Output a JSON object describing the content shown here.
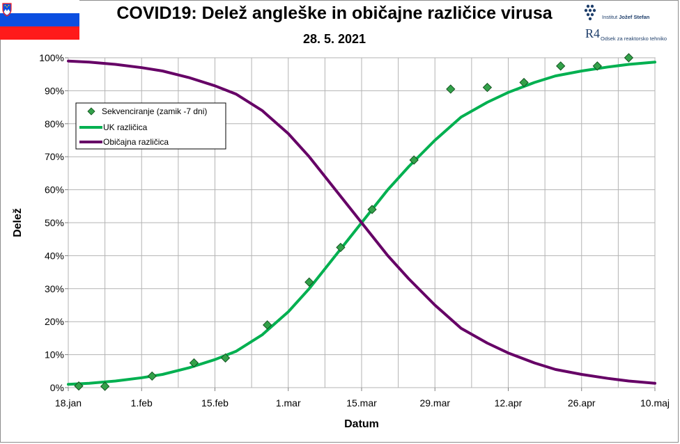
{
  "title": "COVID19: Delež angleške in običajne različice virusa",
  "subtitle": "28. 5. 2021",
  "logos": {
    "ijs_text": "Institut Jožef Stefan",
    "ijs_institut": "Institut ",
    "ijs_name": "Jožef Stefan",
    "r4_mark": "R4",
    "r4_text": "Odsek za reaktorsko tehniko"
  },
  "colors": {
    "uk": "#00b050",
    "common": "#660066",
    "points_fill": "#33a14a",
    "points_stroke": "#0d4d1a",
    "flag_white": "#ffffff",
    "flag_blue": "#0b4ee0",
    "flag_red": "#ff1a1a"
  },
  "chart_data": {
    "type": "line",
    "xlabel": "Datum",
    "ylabel": "Delež",
    "x_tick_labels": [
      "18.jan",
      "1.feb",
      "15.feb",
      "1.mar",
      "15.mar",
      "29.mar",
      "12.apr",
      "26.apr",
      "10.maj"
    ],
    "x_range": [
      "2021-01-18",
      "2021-05-10"
    ],
    "y_tick_labels": [
      "0%",
      "10%",
      "20%",
      "30%",
      "40%",
      "50%",
      "60%",
      "70%",
      "80%",
      "90%",
      "100%"
    ],
    "ylim": [
      0,
      100
    ],
    "grid": true,
    "legend_position": "top-left",
    "legend": [
      "Sekvenciranje (zamik -7 dni)",
      "UK različica",
      "Običajna različica"
    ],
    "series": [
      {
        "name": "Sekvenciranje (zamik -7 dni)",
        "style": "markers",
        "points": [
          {
            "x": "2021-01-20",
            "y": 0.5
          },
          {
            "x": "2021-01-25",
            "y": 0.4
          },
          {
            "x": "2021-02-03",
            "y": 3.5
          },
          {
            "x": "2021-02-11",
            "y": 7.5
          },
          {
            "x": "2021-02-17",
            "y": 9.0
          },
          {
            "x": "2021-02-25",
            "y": 19.0
          },
          {
            "x": "2021-03-05",
            "y": 32.0
          },
          {
            "x": "2021-03-11",
            "y": 42.5
          },
          {
            "x": "2021-03-17",
            "y": 54.0
          },
          {
            "x": "2021-03-25",
            "y": 69.0
          },
          {
            "x": "2021-04-01",
            "y": 90.5
          },
          {
            "x": "2021-04-08",
            "y": 91.0
          },
          {
            "x": "2021-04-15",
            "y": 92.5
          },
          {
            "x": "2021-04-22",
            "y": 97.5
          },
          {
            "x": "2021-04-29",
            "y": 97.5
          },
          {
            "x": "2021-05-05",
            "y": 100.0
          }
        ]
      },
      {
        "name": "UK različica",
        "style": "line",
        "points": [
          {
            "x": "2021-01-18",
            "y": 1.0
          },
          {
            "x": "2021-01-22",
            "y": 1.3
          },
          {
            "x": "2021-01-27",
            "y": 2.0
          },
          {
            "x": "2021-02-01",
            "y": 3.0
          },
          {
            "x": "2021-02-05",
            "y": 4.0
          },
          {
            "x": "2021-02-10",
            "y": 6.0
          },
          {
            "x": "2021-02-15",
            "y": 8.5
          },
          {
            "x": "2021-02-19",
            "y": 11.0
          },
          {
            "x": "2021-02-24",
            "y": 16.0
          },
          {
            "x": "2021-03-01",
            "y": 23.0
          },
          {
            "x": "2021-03-05",
            "y": 30.0
          },
          {
            "x": "2021-03-10",
            "y": 40.0
          },
          {
            "x": "2021-03-15",
            "y": 50.0
          },
          {
            "x": "2021-03-20",
            "y": 60.0
          },
          {
            "x": "2021-03-24",
            "y": 67.0
          },
          {
            "x": "2021-03-29",
            "y": 75.0
          },
          {
            "x": "2021-04-03",
            "y": 82.0
          },
          {
            "x": "2021-04-08",
            "y": 86.5
          },
          {
            "x": "2021-04-12",
            "y": 89.5
          },
          {
            "x": "2021-04-17",
            "y": 92.5
          },
          {
            "x": "2021-04-21",
            "y": 94.5
          },
          {
            "x": "2021-04-26",
            "y": 96.0
          },
          {
            "x": "2021-05-01",
            "y": 97.2
          },
          {
            "x": "2021-05-05",
            "y": 98.0
          },
          {
            "x": "2021-05-10",
            "y": 98.7
          }
        ]
      },
      {
        "name": "Običajna različica",
        "style": "line",
        "points": [
          {
            "x": "2021-01-18",
            "y": 99.0
          },
          {
            "x": "2021-01-22",
            "y": 98.7
          },
          {
            "x": "2021-01-27",
            "y": 98.0
          },
          {
            "x": "2021-02-01",
            "y": 97.0
          },
          {
            "x": "2021-02-05",
            "y": 96.0
          },
          {
            "x": "2021-02-10",
            "y": 94.0
          },
          {
            "x": "2021-02-15",
            "y": 91.5
          },
          {
            "x": "2021-02-19",
            "y": 89.0
          },
          {
            "x": "2021-02-24",
            "y": 84.0
          },
          {
            "x": "2021-03-01",
            "y": 77.0
          },
          {
            "x": "2021-03-05",
            "y": 70.0
          },
          {
            "x": "2021-03-10",
            "y": 60.0
          },
          {
            "x": "2021-03-15",
            "y": 50.0
          },
          {
            "x": "2021-03-20",
            "y": 40.0
          },
          {
            "x": "2021-03-24",
            "y": 33.0
          },
          {
            "x": "2021-03-29",
            "y": 25.0
          },
          {
            "x": "2021-04-03",
            "y": 18.0
          },
          {
            "x": "2021-04-08",
            "y": 13.5
          },
          {
            "x": "2021-04-12",
            "y": 10.5
          },
          {
            "x": "2021-04-17",
            "y": 7.5
          },
          {
            "x": "2021-04-21",
            "y": 5.5
          },
          {
            "x": "2021-04-26",
            "y": 4.0
          },
          {
            "x": "2021-05-01",
            "y": 2.8
          },
          {
            "x": "2021-05-05",
            "y": 2.0
          },
          {
            "x": "2021-05-10",
            "y": 1.3
          }
        ]
      }
    ]
  }
}
